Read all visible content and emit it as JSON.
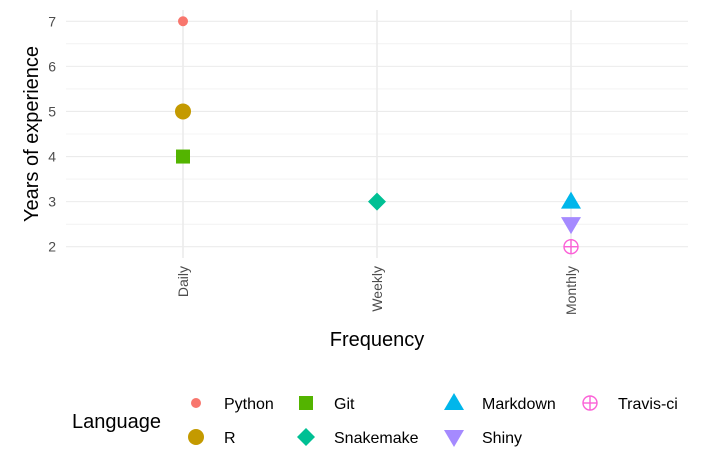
{
  "chart_data": {
    "type": "scatter",
    "title": "",
    "xlabel": "Frequency",
    "ylabel": "Years of experience",
    "categories": [
      "Daily",
      "Weekly",
      "Monthly"
    ],
    "ylim": [
      1.75,
      7.25
    ],
    "yticks": [
      2,
      3,
      4,
      5,
      6,
      7
    ],
    "grid": true,
    "legend_title": "Language",
    "legend_position": "bottom",
    "series": [
      {
        "name": "Python",
        "x": "Daily",
        "y": 7,
        "shape": "circle",
        "color": "#F8766D"
      },
      {
        "name": "R",
        "x": "Daily",
        "y": 5,
        "shape": "circle-large",
        "color": "#C49A00"
      },
      {
        "name": "Git",
        "x": "Daily",
        "y": 4,
        "shape": "square",
        "color": "#53B400"
      },
      {
        "name": "Snakemake",
        "x": "Weekly",
        "y": 3,
        "shape": "diamond",
        "color": "#00C094"
      },
      {
        "name": "Markdown",
        "x": "Monthly",
        "y": 3,
        "shape": "triangle-up",
        "color": "#00B6EB"
      },
      {
        "name": "Shiny",
        "x": "Monthly",
        "y": 2.5,
        "shape": "triangle-down",
        "color": "#A58AFF"
      },
      {
        "name": "Travis-ci",
        "x": "Monthly",
        "y": 2,
        "shape": "circle-plus",
        "color": "#FB61D7"
      }
    ]
  }
}
